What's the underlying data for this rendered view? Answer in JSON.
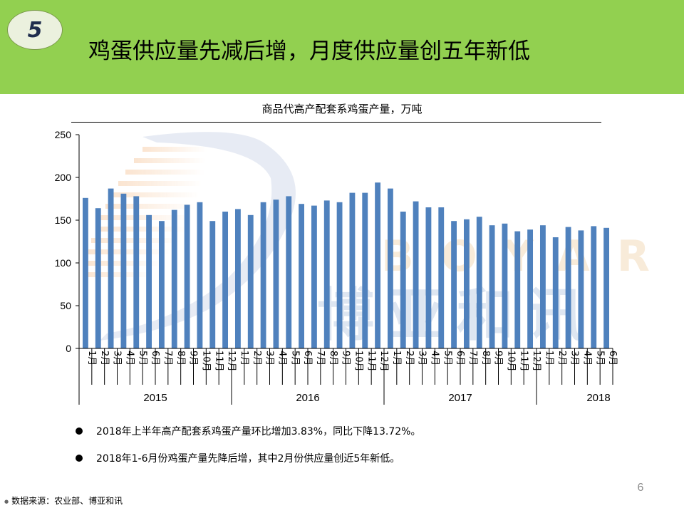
{
  "slide": {
    "number": "5",
    "title": "鸡蛋供应量先减后增，月度供应量创五年新低",
    "page_number": "6",
    "source": "数据来源：农业部、博亚和讯"
  },
  "watermark": {
    "latin": "BOYAR",
    "chinese": "博亚和讯"
  },
  "colors": {
    "header": "#92d050",
    "bar": "#4f81bd",
    "badge": "#ebf1de"
  },
  "bullets": [
    "2018年上半年高产配套系鸡蛋产量环比增加3.83%，同比下降13.72%。",
    "2018年1-6月份鸡蛋产量先降后增，其中2月份供应量创近5年新低。"
  ],
  "chart_data": {
    "type": "bar",
    "title": "商品代高产配套系鸡蛋产量，万吨",
    "ylim": [
      0,
      250
    ],
    "yticks": [
      0,
      50,
      100,
      150,
      200,
      250
    ],
    "grid": false,
    "years": [
      {
        "label": "2015",
        "months": [
          "1月",
          "2月",
          "3月",
          "4月",
          "5月",
          "6月",
          "7月",
          "8月",
          "9月",
          "10月",
          "11月",
          "12月"
        ],
        "values": [
          176,
          164,
          187,
          181,
          178,
          156,
          149,
          162,
          168,
          171,
          149,
          160
        ]
      },
      {
        "label": "2016",
        "months": [
          "1月",
          "2月",
          "3月",
          "4月",
          "5月",
          "6月",
          "7月",
          "8月",
          "9月",
          "10月",
          "11月",
          "12月"
        ],
        "values": [
          163,
          156,
          171,
          174,
          178,
          169,
          167,
          173,
          171,
          182,
          182,
          194
        ]
      },
      {
        "label": "2017",
        "months": [
          "1月",
          "2月",
          "3月",
          "4月",
          "5月",
          "6月",
          "7月",
          "8月",
          "9月",
          "10月",
          "11月",
          "12月"
        ],
        "values": [
          187,
          160,
          172,
          165,
          165,
          149,
          151,
          154,
          144,
          146,
          137,
          139
        ]
      },
      {
        "label": "2018",
        "months": [
          "1月",
          "2月",
          "3月",
          "4月",
          "5月",
          "6月"
        ],
        "values": [
          144,
          130,
          142,
          138,
          143,
          141
        ]
      }
    ]
  }
}
